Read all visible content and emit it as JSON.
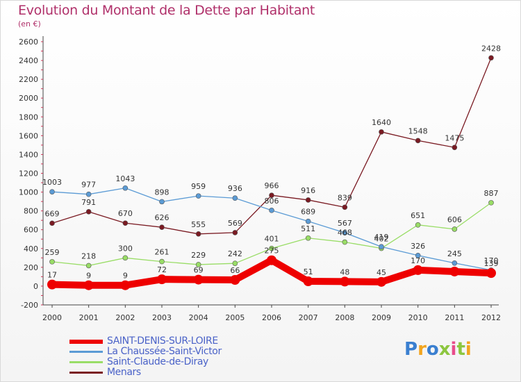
{
  "title": "Evolution du Montant de la Dette par Habitant",
  "unit_label": "(en €)",
  "chart_data": {
    "type": "line",
    "title": "Evolution du Montant de la Dette par Habitant",
    "ylabel": "(en €)",
    "xlabel": "",
    "x": [
      "2000",
      "2001",
      "2002",
      "2003",
      "2004",
      "2005",
      "2006",
      "2007",
      "2008",
      "2009",
      "2010",
      "2011",
      "2012"
    ],
    "ylim": [
      -200,
      2600
    ],
    "yticks": [
      -200,
      0,
      200,
      400,
      600,
      800,
      1000,
      1200,
      1400,
      1600,
      1800,
      2000,
      2200,
      2400,
      2600
    ],
    "grid": false,
    "legend_position": "bottom-left",
    "series": [
      {
        "name": "SAINT-DENIS-SUR-LOIRE",
        "color": "#ee0000",
        "values": [
          17,
          9,
          9,
          72,
          69,
          66,
          275,
          51,
          48,
          45,
          170,
          155,
          139
        ],
        "labels": [
          "17",
          "9",
          "9",
          "72",
          "69",
          "66",
          "275",
          "51",
          "48",
          "45",
          "170",
          "",
          "139"
        ]
      },
      {
        "name": "La Chaussée-Saint-Victor",
        "color": "#5b9bd5",
        "values": [
          1003,
          977,
          1043,
          898,
          959,
          936,
          806,
          689,
          567,
          419,
          326,
          245,
          170
        ],
        "labels": [
          "1003",
          "977",
          "1043",
          "898",
          "959",
          "936",
          "806",
          "689",
          "567",
          "419",
          "326",
          "245",
          "170"
        ]
      },
      {
        "name": "Saint-Claude-de-Diray",
        "color": "#99dd66",
        "values": [
          259,
          218,
          300,
          261,
          229,
          242,
          401,
          511,
          468,
          402,
          651,
          606,
          887
        ],
        "labels": [
          "259",
          "218",
          "300",
          "261",
          "229",
          "242",
          "401",
          "511",
          "468",
          "402",
          "651",
          "606",
          "887"
        ]
      },
      {
        "name": "Menars",
        "color": "#7a1a22",
        "values": [
          669,
          791,
          670,
          626,
          555,
          569,
          966,
          916,
          839,
          1640,
          1548,
          1475,
          2428
        ],
        "labels": [
          "669",
          "791",
          "670",
          "626",
          "555",
          "569",
          "966",
          "916",
          "839",
          "1640",
          "1548",
          "1475",
          "2428"
        ]
      }
    ]
  },
  "legend": [
    {
      "label": "SAINT-DENIS-SUR-LOIRE",
      "color": "#ee0000"
    },
    {
      "label": "La Chaussée-Saint-Victor",
      "color": "#5b9bd5"
    },
    {
      "label": "Saint-Claude-de-Diray",
      "color": "#99dd66"
    },
    {
      "label": "Menars",
      "color": "#7a1a22"
    }
  ],
  "logo": {
    "letters": [
      "P",
      "r",
      "o",
      "x",
      "i",
      "t",
      "i"
    ],
    "colors": [
      "#3a7fd0",
      "#f2a51f",
      "#3a7fd0",
      "#8cc63f",
      "#e84c8b",
      "#8cc63f",
      "#f2a51f"
    ]
  }
}
